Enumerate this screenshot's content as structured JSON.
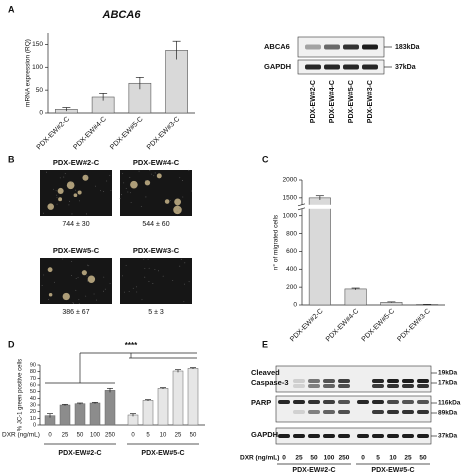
{
  "chart_data": [
    {
      "panel": "A",
      "type": "bar",
      "title": "ABCA6",
      "y_label": "mRNA expression (RQ)",
      "categories": [
        "PDX-EW#2-C",
        "PDX-EW#4-C",
        "PDX-EW#5-C",
        "PDX-EW#3-C"
      ],
      "values": [
        8,
        35,
        65,
        137
      ],
      "errors": [
        4,
        8,
        13,
        20
      ],
      "color": "#d9d9d9",
      "ylim": [
        0,
        175
      ],
      "yticks": [
        0,
        50,
        100,
        150
      ]
    },
    {
      "panel": "C",
      "type": "bar",
      "y_label": "n° of migrated cells",
      "categories": [
        "PDX-EW#2-C",
        "PDX-EW#4-C",
        "PDX-EW#5-C",
        "PDX-EW#3-C"
      ],
      "values": [
        1500,
        180,
        30,
        5
      ],
      "errors": [
        60,
        10,
        5,
        2
      ],
      "color": "#d9d9d9",
      "ylim": [
        0,
        2000
      ],
      "yticks": [
        0,
        200,
        400,
        600,
        800,
        1000,
        1500,
        2000
      ],
      "axis_break": true
    },
    {
      "panel": "D",
      "type": "grouped-bar",
      "y_label": "% JC-1 green positive cells",
      "x_label": "DXR (ng/mL)",
      "annotation": "****",
      "ylim": [
        0,
        90
      ],
      "yticks": [
        0,
        10,
        20,
        30,
        40,
        50,
        60,
        70,
        80,
        90
      ],
      "groups": [
        {
          "name": "PDX-EW#2-C",
          "color": "#8c8c8c",
          "categories": [
            "0",
            "25",
            "50",
            "100",
            "250"
          ],
          "values": [
            14,
            30,
            32,
            33,
            52
          ],
          "errors": [
            3,
            1,
            1,
            1,
            3
          ]
        },
        {
          "name": "PDX-EW#5-C",
          "color": "#e6e6e6",
          "categories": [
            "0",
            "5",
            "10",
            "25",
            "50"
          ],
          "values": [
            15,
            37,
            55,
            81,
            85
          ],
          "errors": [
            2,
            1,
            1,
            2,
            1
          ]
        }
      ]
    }
  ],
  "blot_a": {
    "rows": [
      "ABCA6",
      "GAPDH"
    ],
    "sizes": [
      "183kDa",
      "37kDa"
    ],
    "lanes": [
      "PDX-EW#2-C",
      "PDX-EW#4-C",
      "PDX-EW#5-C",
      "PDX-EW#3-C"
    ]
  },
  "panel_b": {
    "panel": "B",
    "images": [
      {
        "label": "PDX-EW#2-C",
        "count": "744 ± 30"
      },
      {
        "label": "PDX-EW#4-C",
        "count": "544 ± 60"
      },
      {
        "label": "PDX-EW#5-C",
        "count": "386 ± 67"
      },
      {
        "label": "PDX-EW#3-C",
        "count": "5 ± 3"
      }
    ]
  },
  "blot_e": {
    "panel": "E",
    "rows": [
      {
        "label": [
          "Cleaved",
          "Caspase-3"
        ],
        "sizes": [
          "19kDa",
          "17kDa"
        ]
      },
      {
        "label": [
          "PARP"
        ],
        "sizes": [
          "116kDa",
          "89kDa"
        ]
      },
      {
        "label": [
          "GAPDH"
        ],
        "sizes": [
          "37kDa"
        ]
      }
    ],
    "x_label": "DXR (ng/mL)",
    "groups": [
      {
        "name": "PDX-EW#2-C",
        "doses": [
          "0",
          "25",
          "50",
          "100",
          "250"
        ]
      },
      {
        "name": "PDX-EW#5-C",
        "doses": [
          "0",
          "5",
          "10",
          "25",
          "50"
        ]
      }
    ]
  }
}
